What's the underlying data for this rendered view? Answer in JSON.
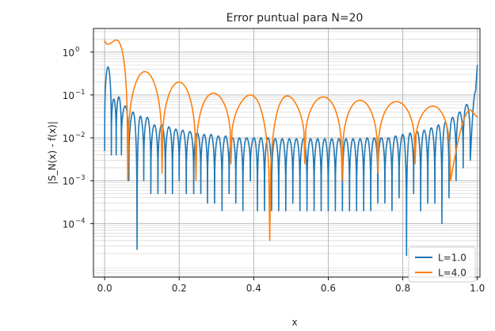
{
  "chart_data": {
    "type": "line",
    "title": "Error puntual para N=20",
    "xlabel": "x",
    "ylabel": "|S_N(x) - f(x)|",
    "xlim": [
      -0.03,
      1.007
    ],
    "xticks": [
      0.0,
      0.2,
      0.4,
      0.6,
      0.8,
      1.0
    ],
    "xtick_labels": [
      "0.0",
      "0.2",
      "0.4",
      "0.6",
      "0.8",
      "1.0"
    ],
    "yscale": "log",
    "ylim_log10": [
      -5.25,
      0.55
    ],
    "yticks_log10": [
      0,
      -1,
      -2,
      -3,
      -4
    ],
    "ytick_labels": [
      {
        "base": "10",
        "exp": "0"
      },
      {
        "base": "10",
        "exp": "−1"
      },
      {
        "base": "10",
        "exp": "−2"
      },
      {
        "base": "10",
        "exp": "−3"
      },
      {
        "base": "10",
        "exp": "−4"
      }
    ],
    "grid": "major and minor",
    "legend_position": "lower right",
    "series": [
      {
        "name": "L=1.0",
        "color": "#1f77b4",
        "dip_x": [
          0.0,
          0.018,
          0.031,
          0.045,
          0.065,
          0.087,
          0.105,
          0.124,
          0.143,
          0.163,
          0.182,
          0.2,
          0.219,
          0.239,
          0.258,
          0.276,
          0.295,
          0.315,
          0.334,
          0.352,
          0.371,
          0.391,
          0.41,
          0.429,
          0.448,
          0.467,
          0.486,
          0.505,
          0.524,
          0.543,
          0.562,
          0.581,
          0.6,
          0.619,
          0.638,
          0.657,
          0.676,
          0.695,
          0.714,
          0.733,
          0.752,
          0.771,
          0.79,
          0.81,
          0.829,
          0.848,
          0.867,
          0.886,
          0.905,
          0.924,
          0.943,
          0.962,
          0.981
        ],
        "dip_y": [
          0.005,
          0.004,
          0.004,
          0.004,
          0.001,
          2.5e-05,
          0.001,
          0.0005,
          0.0005,
          0.0005,
          0.0005,
          0.001,
          0.0005,
          0.0005,
          0.0005,
          0.0003,
          0.0003,
          0.0002,
          0.0005,
          0.0003,
          0.0002,
          0.001,
          0.0002,
          0.0002,
          0.0002,
          0.0002,
          0.0002,
          0.0003,
          0.0002,
          0.0002,
          0.0002,
          0.0002,
          0.0002,
          0.0002,
          0.0002,
          0.0002,
          0.0002,
          0.0002,
          0.0002,
          0.0003,
          0.0003,
          0.0002,
          0.0004,
          1.8e-05,
          0.0005,
          0.0002,
          0.0003,
          0.0003,
          0.0001,
          0.0004,
          0.001,
          0.002,
          0.003
        ],
        "peak_y": [
          0.45,
          0.08,
          0.09,
          0.055,
          0.04,
          0.032,
          0.03,
          0.02,
          0.02,
          0.018,
          0.016,
          0.015,
          0.014,
          0.013,
          0.012,
          0.012,
          0.011,
          0.011,
          0.01,
          0.01,
          0.01,
          0.01,
          0.01,
          0.01,
          0.0095,
          0.0095,
          0.0095,
          0.0095,
          0.0095,
          0.0095,
          0.0095,
          0.0095,
          0.0095,
          0.0095,
          0.0095,
          0.0095,
          0.0095,
          0.01,
          0.01,
          0.01,
          0.01,
          0.011,
          0.012,
          0.013,
          0.014,
          0.015,
          0.017,
          0.02,
          0.023,
          0.03,
          0.04,
          0.06,
          0.12
        ],
        "end_value": 0.5
      },
      {
        "name": "L=4.0",
        "color": "#ff7f0e",
        "dip_x": [
          0.0,
          0.062,
          0.154,
          0.245,
          0.339,
          0.443,
          0.537,
          0.637,
          0.733,
          0.833,
          0.928
        ],
        "dip_y": [
          1.9,
          0.001,
          0.0015,
          0.001,
          0.0025,
          4e-05,
          0.0025,
          0.001,
          0.0015,
          0.0025,
          0.001
        ],
        "peak_y": [
          0.3,
          0.35,
          0.2,
          0.11,
          0.1,
          0.095,
          0.09,
          0.075,
          0.07,
          0.055,
          0.045
        ],
        "end_value": 0.03
      }
    ]
  }
}
